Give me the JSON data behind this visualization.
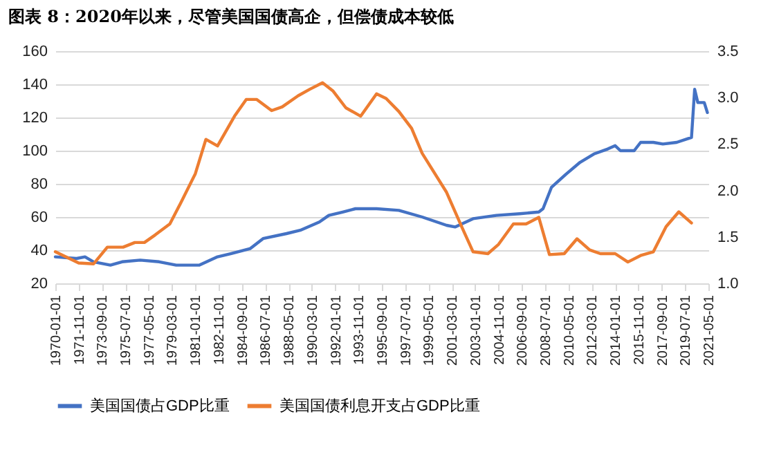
{
  "chart_data": {
    "type": "line",
    "title": "图表 8：2020年以来，尽管美国国债高企，但偿债成本较低",
    "x": [
      "1970-01",
      "1971-09",
      "1972-05",
      "1973-01",
      "1974-05",
      "1975-04",
      "1976-09",
      "1978-03",
      "1979-07",
      "1981-05",
      "1982-10",
      "1983-11",
      "1985-05",
      "1986-05",
      "1988-03",
      "1989-04",
      "1990-10",
      "1991-07",
      "1992-08",
      "1993-08",
      "1995-04",
      "1997-01",
      "1998-11",
      "2000-10",
      "2001-06",
      "2002-11",
      "2004-09",
      "2006-07",
      "2008-01",
      "2008-05",
      "2009-01",
      "2010-03",
      "2011-04",
      "2012-05",
      "2013-06",
      "2014-01",
      "2014-06",
      "2015-07",
      "2016-01",
      "2017-01",
      "2017-10",
      "2018-11",
      "2020-01",
      "2020-04",
      "2020-07",
      "2021-01",
      "2021-04"
    ],
    "series": [
      {
        "name": "美国国债占GDP比重",
        "color": "#4472c4",
        "values": [
          36,
          35,
          36,
          33,
          31,
          33,
          34,
          33,
          31,
          31,
          36,
          38,
          41,
          47,
          50,
          52,
          57,
          61,
          63,
          65,
          65,
          64,
          60,
          55,
          54,
          59,
          61,
          62,
          63,
          65,
          78,
          86,
          93,
          98,
          101,
          103,
          100,
          100,
          105,
          105,
          104,
          105,
          108,
          137,
          129,
          129,
          123
        ]
      },
      {
        "name": "美国国债利息开支占GDP比重",
        "color": "#ed7d31",
        "axis": "y2",
        "x": [
          "1970-01",
          "1971-11",
          "1973-01",
          "1974-02",
          "1975-05",
          "1976-04",
          "1977-01",
          "1977-11",
          "1979-01",
          "1979-11",
          "1981-01",
          "1981-11",
          "1982-10",
          "1984-02",
          "1985-01",
          "1985-11",
          "1987-01",
          "1987-11",
          "1989-02",
          "1990-01",
          "1991-01",
          "1991-11",
          "1992-11",
          "1994-01",
          "1995-04",
          "1996-01",
          "1997-01",
          "1998-01",
          "1998-11",
          "2000-10",
          "2002-01",
          "2002-11",
          "2004-01",
          "2004-11",
          "2006-01",
          "2007-01",
          "2008-01",
          "2008-11",
          "2010-01",
          "2011-01",
          "2012-01",
          "2012-11",
          "2014-01",
          "2015-01",
          "2016-01",
          "2017-01",
          "2018-01",
          "2019-01",
          "2020-01"
        ],
        "values": [
          1.34,
          1.22,
          1.21,
          1.39,
          1.39,
          1.44,
          1.44,
          1.52,
          1.64,
          1.86,
          2.18,
          2.55,
          2.48,
          2.8,
          2.98,
          2.98,
          2.86,
          2.9,
          3.02,
          3.09,
          3.16,
          3.07,
          2.89,
          2.8,
          3.04,
          2.99,
          2.85,
          2.67,
          2.4,
          1.98,
          1.59,
          1.34,
          1.32,
          1.42,
          1.64,
          1.64,
          1.71,
          1.31,
          1.32,
          1.48,
          1.36,
          1.32,
          1.32,
          1.23,
          1.3,
          1.34,
          1.61,
          1.77,
          1.65
        ]
      }
    ],
    "xlim": [
      "1970-01-01",
      "2021-05-01"
    ],
    "xticks": [
      "1970-01-01",
      "1971-11-01",
      "1973-09-01",
      "1975-07-01",
      "1977-05-01",
      "1979-03-01",
      "1981-01-01",
      "1982-11-01",
      "1984-09-01",
      "1986-07-01",
      "1988-05-01",
      "1990-03-01",
      "1992-01-01",
      "1993-11-01",
      "1995-09-01",
      "1997-07-01",
      "1999-05-01",
      "2001-03-01",
      "2003-01-01",
      "2004-11-01",
      "2006-09-01",
      "2008-07-01",
      "2010-05-01",
      "2012-03-01",
      "2014-01-01",
      "2015-11-01",
      "2017-09-01",
      "2019-07-01",
      "2021-05-01"
    ],
    "ylim": [
      20,
      160
    ],
    "yticks": [
      20,
      40,
      60,
      80,
      100,
      120,
      140,
      160
    ],
    "y2lim": [
      1,
      3.5
    ],
    "y2ticks": [
      {
        "value": 1,
        "label": "1.0"
      },
      {
        "value": 1.5,
        "label": "1.5"
      },
      {
        "value": 2,
        "label": "2.0"
      },
      {
        "value": 2.5,
        "label": "2.5"
      },
      {
        "value": 3,
        "label": "3.0"
      },
      {
        "value": 3.5,
        "label": "3.5"
      }
    ],
    "grid": "y",
    "legend": "bottom",
    "marker": "none",
    "line_style": "solid"
  }
}
